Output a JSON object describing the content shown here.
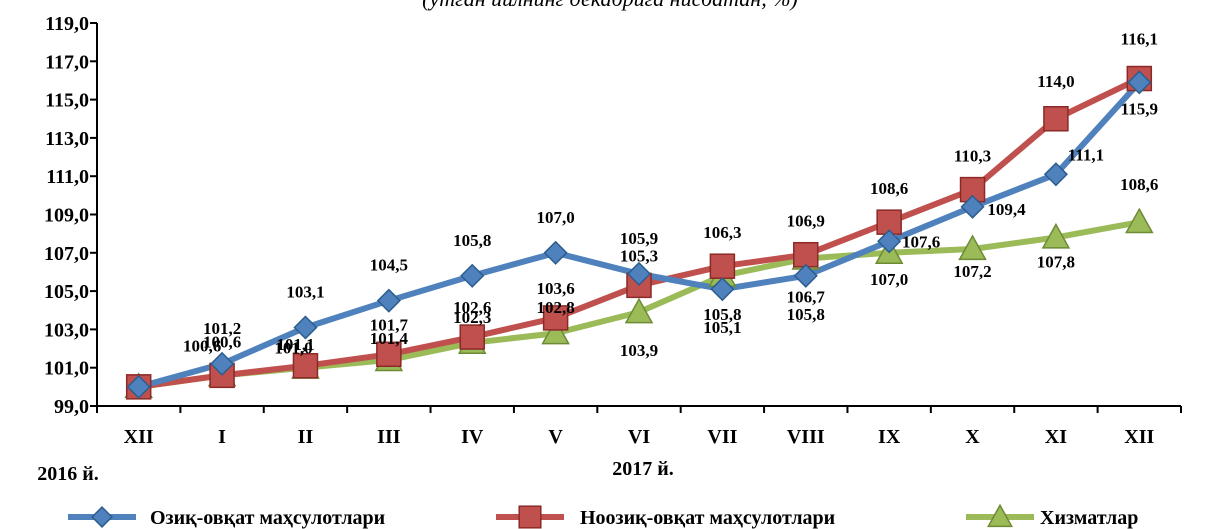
{
  "chart_data": {
    "type": "line",
    "subtitle": "(ўтган йилнинг декабрига нисбатан, %)",
    "year_labels": [
      "2016 й.",
      "2017 й."
    ],
    "categories": [
      "XII",
      "I",
      "II",
      "III",
      "IV",
      "V",
      "VI",
      "VII",
      "VIII",
      "IX",
      "X",
      "XI",
      "XII"
    ],
    "ylim": [
      99.0,
      119.0
    ],
    "yticks": [
      "99,0",
      "101,0",
      "103,0",
      "105,0",
      "107,0",
      "109,0",
      "111,0",
      "113,0",
      "115,0",
      "117,0",
      "119,0"
    ],
    "grid": false,
    "legend_position": "bottom",
    "series": [
      {
        "name": "Озиқ-овқат маҳсулотлари",
        "color": "#4f81bd",
        "marker": "diamond",
        "values": [
          100.0,
          101.2,
          103.1,
          104.5,
          105.8,
          107.0,
          105.9,
          105.1,
          105.8,
          107.6,
          109.4,
          111.1,
          115.9
        ],
        "labels": [
          "",
          "101,2",
          "103,1",
          "104,5",
          "105,8",
          "107,0",
          "105,9",
          "105,1",
          "105,8",
          "107,6",
          "109,4",
          "111,1",
          "115,9"
        ]
      },
      {
        "name": "Ноозиқ-овқат маҳсулотлари",
        "color": "#c0504d",
        "marker": "square",
        "values": [
          100.0,
          100.6,
          101.1,
          101.7,
          102.6,
          103.6,
          105.3,
          106.3,
          106.9,
          108.6,
          110.3,
          114.0,
          116.1
        ],
        "labels": [
          "",
          "100,6",
          "101,1",
          "101,7",
          "102,6",
          "103,6",
          "105,3",
          "106,3",
          "106,9",
          "108,6",
          "110,3",
          "114,0",
          "116,1"
        ]
      },
      {
        "name": "Хизматлар",
        "color": "#9bbb59",
        "marker": "triangle",
        "values": [
          100.0,
          100.6,
          101.0,
          101.4,
          102.3,
          102.8,
          103.9,
          105.8,
          106.7,
          107.0,
          107.2,
          107.8,
          108.6
        ],
        "labels": [
          "",
          "100,6",
          "101,0",
          "101,4",
          "102,3",
          "102,8",
          "103,9",
          "105,8",
          "106,7",
          "107,0",
          "107,2",
          "107,8",
          "108,6"
        ]
      }
    ]
  }
}
